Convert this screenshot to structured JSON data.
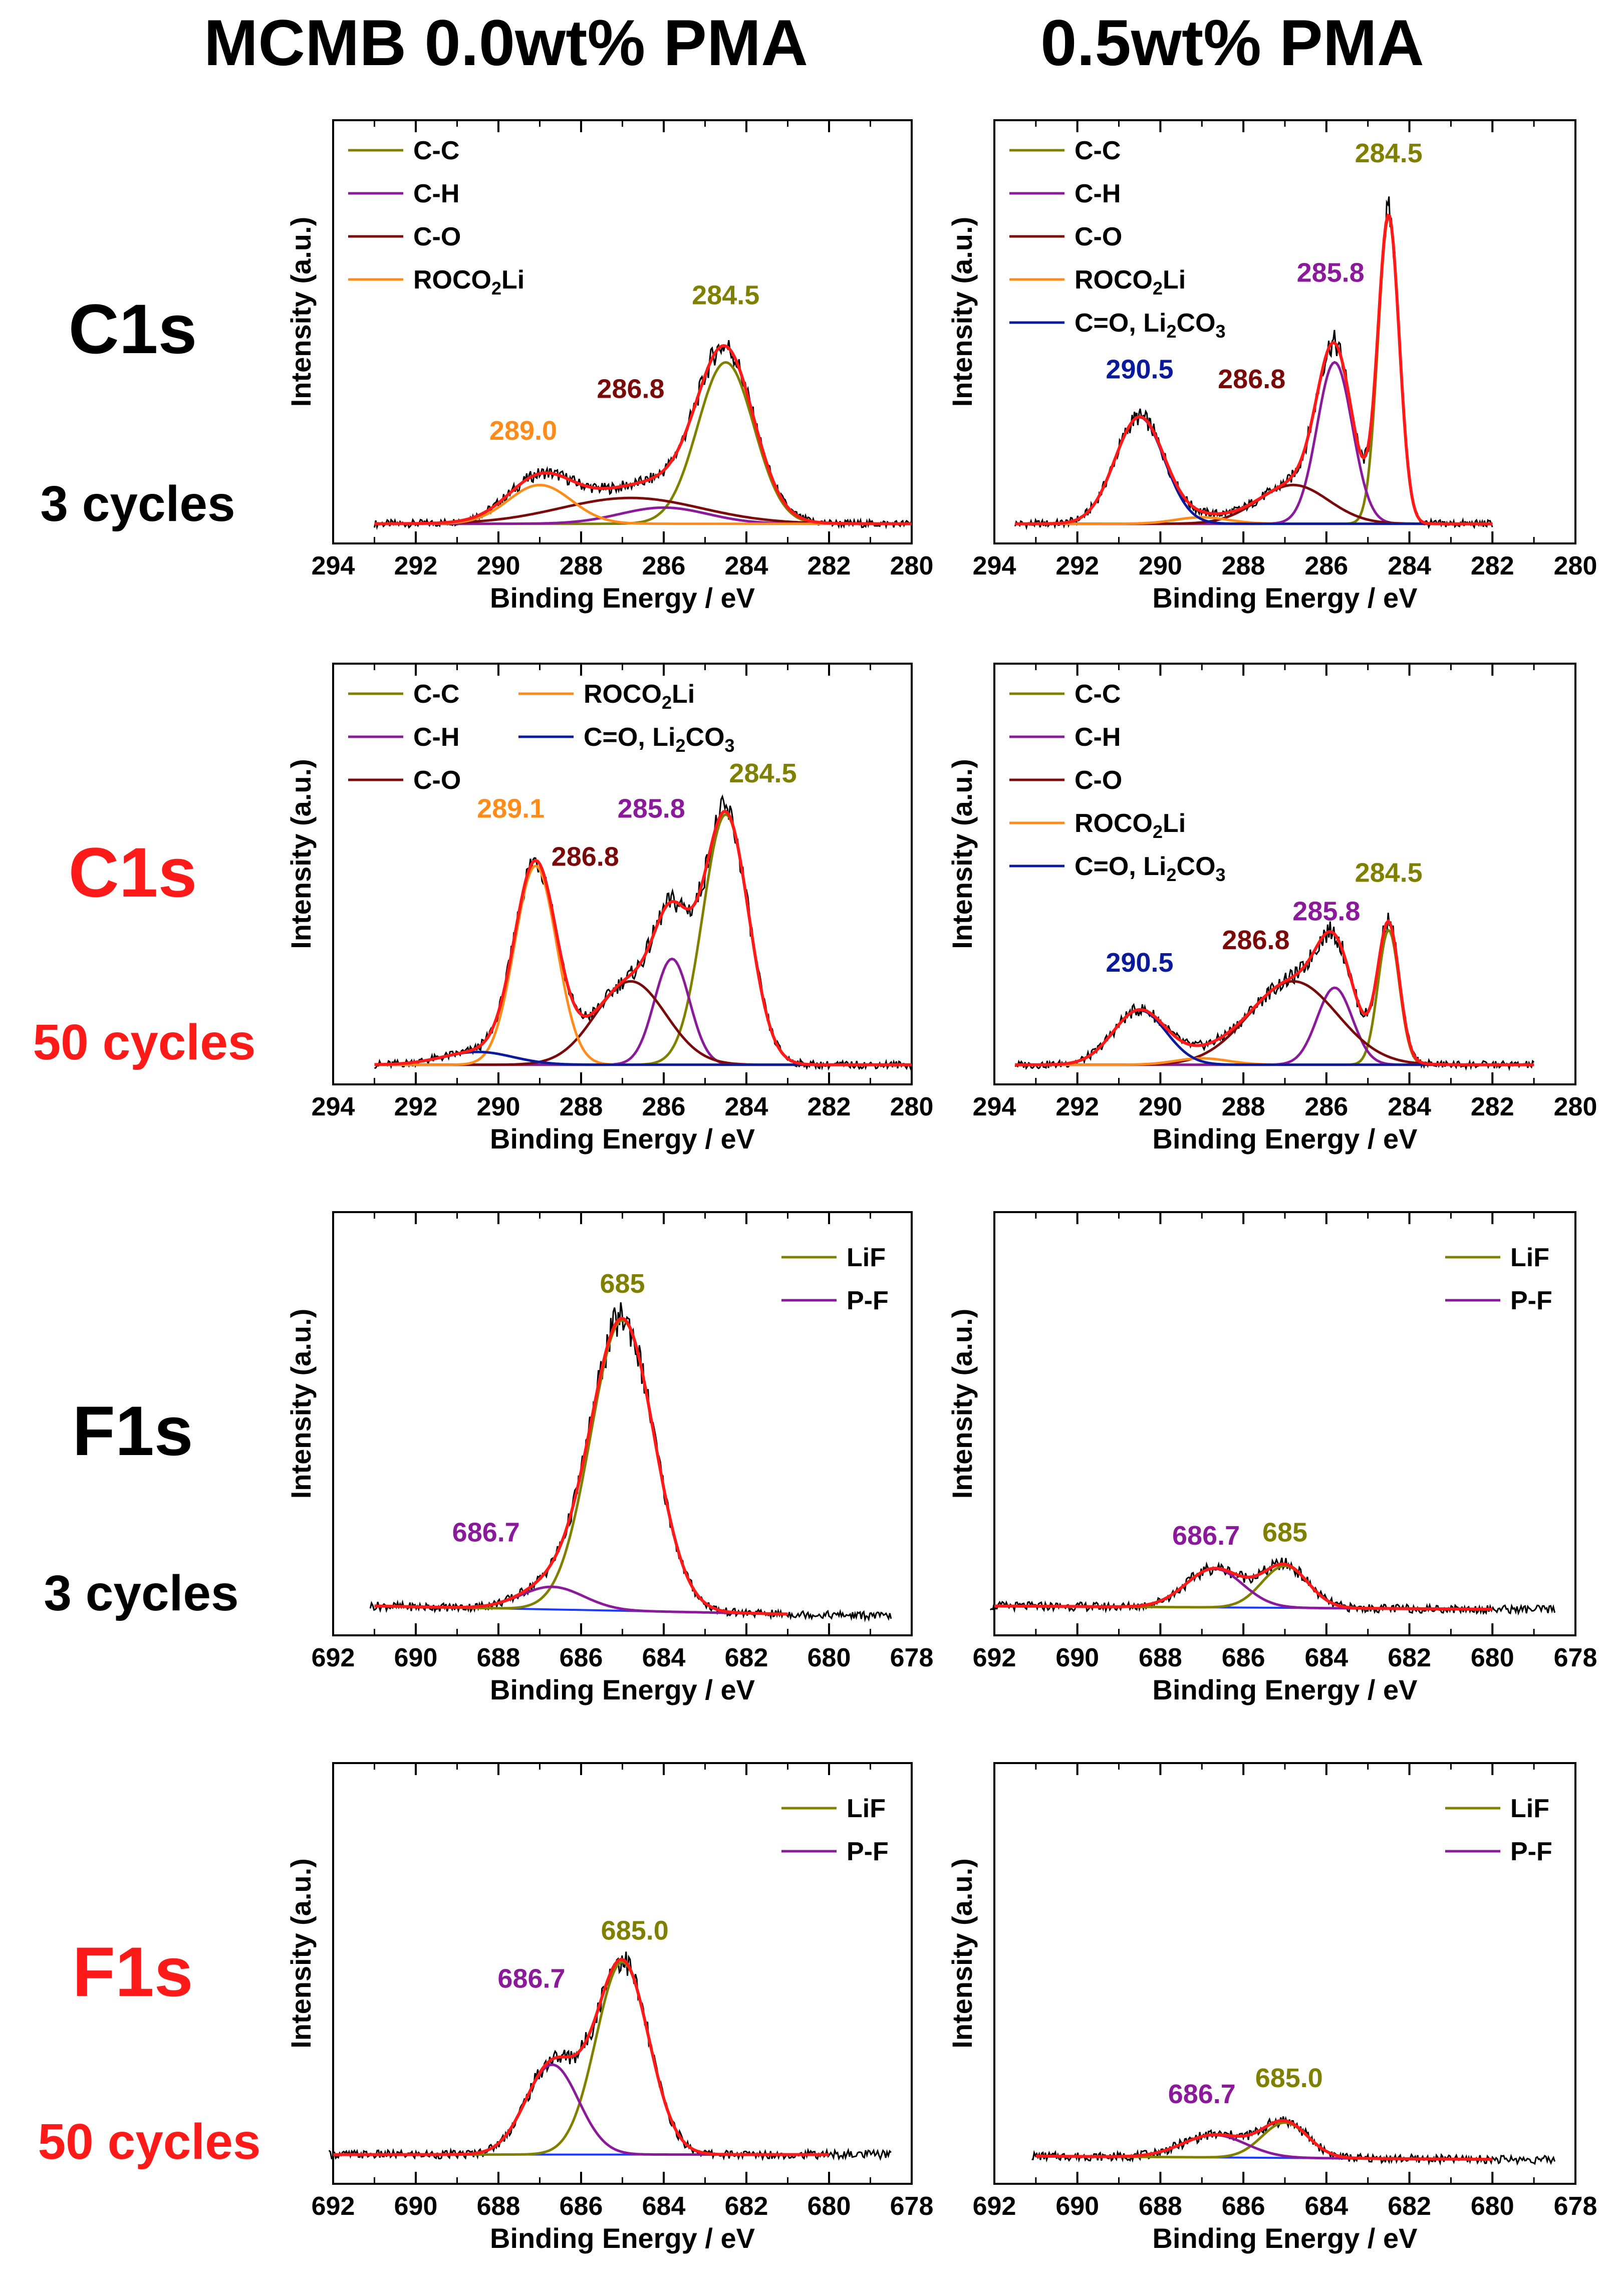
{
  "titles": {
    "left": "MCMB 0.0wt% PMA",
    "right": "0.5wt% PMA"
  },
  "row_labels": [
    {
      "main": "C1s",
      "sub": "3 cycles",
      "color": "#000000"
    },
    {
      "main": "C1s",
      "sub": "50 cycles",
      "color": "#ff1a1a"
    },
    {
      "main": "F1s",
      "sub": "3 cycles",
      "color": "#000000"
    },
    {
      "main": "F1s",
      "sub": "50 cycles",
      "color": "#ff1a1a"
    }
  ],
  "colors": {
    "C-C": "#808000",
    "C-H": "#8b1a9b",
    "C-O": "#7a0a0a",
    "ROCO2Li": "#ff8c1a",
    "C=O, Li2CO3": "#0a1a9a",
    "LiF": "#808000",
    "P-F": "#8b1a9b",
    "baseline": "#1a3aff",
    "envelope": "#ff1a1a",
    "raw": "#000000"
  },
  "chart_data": [
    {
      "id": "c1s-3-0pma",
      "type": "line",
      "region": "C1s",
      "xlabel": "Binding Energy / eV",
      "ylabel": "Intensity (a.u.)",
      "xlim": [
        294,
        280
      ],
      "xticks": [
        294,
        292,
        290,
        288,
        286,
        284,
        282,
        280
      ],
      "fit_range": [
        293,
        280
      ],
      "legend": [
        {
          "key": "C-C",
          "label": "C-C"
        },
        {
          "key": "C-H",
          "label": "C-H"
        },
        {
          "key": "C-O",
          "label": "C-O"
        },
        {
          "key": "ROCO2Li",
          "label": "ROCO",
          "sub": "2",
          "tail": "Li"
        }
      ],
      "peaks": [
        {
          "key": "C-C",
          "center": 284.5,
          "height": 0.5,
          "fwhm": 1.6
        },
        {
          "key": "C-H",
          "center": 286.0,
          "height": 0.05,
          "fwhm": 2.5
        },
        {
          "key": "C-O",
          "center": 286.8,
          "height": 0.08,
          "fwhm": 4.0
        },
        {
          "key": "ROCO2Li",
          "center": 289.0,
          "height": 0.12,
          "fwhm": 1.8
        }
      ],
      "baseline": [],
      "annotations": [
        {
          "text": "284.5",
          "x": 284.5,
          "y": 0.68,
          "key": "C-C"
        },
        {
          "text": "286.8",
          "x": 286.8,
          "y": 0.39,
          "key": "C-O"
        },
        {
          "text": "289.0",
          "x": 289.4,
          "y": 0.26,
          "key": "ROCO2Li"
        }
      ]
    },
    {
      "id": "c1s-3-05pma",
      "type": "line",
      "region": "C1s",
      "xlabel": "Binding Energy / eV",
      "ylabel": "Intensity (a.u.)",
      "xlim": [
        294,
        280
      ],
      "xticks": [
        294,
        292,
        290,
        288,
        286,
        284,
        282,
        280
      ],
      "fit_range": [
        293.5,
        282
      ],
      "legend": [
        {
          "key": "C-C",
          "label": "C-C"
        },
        {
          "key": "C-H",
          "label": "C-H"
        },
        {
          "key": "C-O",
          "label": "C-O"
        },
        {
          "key": "ROCO2Li",
          "label": "ROCO",
          "sub": "2",
          "tail": "Li"
        },
        {
          "key": "C=O, Li2CO3",
          "label": "C=O, Li",
          "sub": "2",
          "tail": "CO",
          "sub2": "3"
        }
      ],
      "peaks": [
        {
          "key": "C-C",
          "center": 284.5,
          "height": 0.95,
          "fwhm": 0.6
        },
        {
          "key": "C-H",
          "center": 285.8,
          "height": 0.5,
          "fwhm": 1.0
        },
        {
          "key": "C-O",
          "center": 286.8,
          "height": 0.12,
          "fwhm": 2.0
        },
        {
          "key": "ROCO2Li",
          "center": 289.0,
          "height": 0.02,
          "fwhm": 1.5
        },
        {
          "key": "C=O, Li2CO3",
          "center": 290.5,
          "height": 0.33,
          "fwhm": 1.4
        }
      ],
      "baseline": [],
      "annotations": [
        {
          "text": "284.5",
          "x": 284.5,
          "y": 1.12,
          "key": "C-C"
        },
        {
          "text": "285.8",
          "x": 285.9,
          "y": 0.75,
          "key": "C-H"
        },
        {
          "text": "286.8",
          "x": 287.8,
          "y": 0.42,
          "key": "C-O"
        },
        {
          "text": "290.5",
          "x": 290.5,
          "y": 0.45,
          "key": "C=O, Li2CO3"
        }
      ]
    },
    {
      "id": "c1s-50-0pma",
      "type": "line",
      "region": "C1s",
      "xlabel": "Binding Energy / eV",
      "ylabel": "Intensity (a.u.)",
      "xlim": [
        294,
        280
      ],
      "xticks": [
        294,
        292,
        290,
        288,
        286,
        284,
        282,
        280
      ],
      "fit_range": [
        293,
        280
      ],
      "legend": [
        {
          "key": "C-C",
          "label": "C-C"
        },
        {
          "key": "C-H",
          "label": "C-H"
        },
        {
          "key": "C-O",
          "label": "C-O"
        },
        {
          "key": "ROCO2Li",
          "label": "ROCO",
          "sub": "2",
          "tail": "Li"
        },
        {
          "key": "C=O, Li2CO3",
          "label": "C=O, Li",
          "sub": "2",
          "tail": "CO",
          "sub2": "3"
        }
      ],
      "peaks": [
        {
          "key": "C-C",
          "center": 284.5,
          "height": 0.78,
          "fwhm": 1.3
        },
        {
          "key": "C-H",
          "center": 285.8,
          "height": 0.33,
          "fwhm": 1.0
        },
        {
          "key": "C-O",
          "center": 286.8,
          "height": 0.26,
          "fwhm": 2.0
        },
        {
          "key": "ROCO2Li",
          "center": 289.1,
          "height": 0.62,
          "fwhm": 1.2
        },
        {
          "key": "C=O, Li2CO3",
          "center": 290.5,
          "height": 0.04,
          "fwhm": 2.0
        }
      ],
      "baseline": [],
      "annotations": [
        {
          "text": "284.5",
          "x": 283.6,
          "y": 0.88,
          "key": "C-C"
        },
        {
          "text": "285.8",
          "x": 286.3,
          "y": 0.77,
          "key": "C-H"
        },
        {
          "text": "286.8",
          "x": 287.9,
          "y": 0.62,
          "key": "C-O"
        },
        {
          "text": "289.1",
          "x": 289.7,
          "y": 0.77,
          "key": "ROCO2Li"
        }
      ]
    },
    {
      "id": "c1s-50-05pma",
      "type": "line",
      "region": "C1s",
      "xlabel": "Binding Energy / eV",
      "ylabel": "Intensity (a.u.)",
      "xlim": [
        294,
        280
      ],
      "xticks": [
        294,
        292,
        290,
        288,
        286,
        284,
        282,
        280
      ],
      "fit_range": [
        293.5,
        281
      ],
      "legend": [
        {
          "key": "C-C",
          "label": "C-C"
        },
        {
          "key": "C-H",
          "label": "C-H"
        },
        {
          "key": "C-O",
          "label": "C-O"
        },
        {
          "key": "ROCO2Li",
          "label": "ROCO",
          "sub": "2",
          "tail": "Li"
        },
        {
          "key": "C=O, Li2CO3",
          "label": "C=O, Li",
          "sub": "2",
          "tail": "CO",
          "sub2": "3"
        }
      ],
      "peaks": [
        {
          "key": "C-C",
          "center": 284.5,
          "height": 0.42,
          "fwhm": 0.6
        },
        {
          "key": "C-H",
          "center": 285.8,
          "height": 0.24,
          "fwhm": 1.0
        },
        {
          "key": "C-O",
          "center": 286.8,
          "height": 0.26,
          "fwhm": 2.5
        },
        {
          "key": "ROCO2Li",
          "center": 289.0,
          "height": 0.02,
          "fwhm": 1.5
        },
        {
          "key": "C=O, Li2CO3",
          "center": 290.5,
          "height": 0.17,
          "fwhm": 1.5
        }
      ],
      "baseline": [],
      "annotations": [
        {
          "text": "284.5",
          "x": 284.5,
          "y": 0.57,
          "key": "C-C"
        },
        {
          "text": "285.8",
          "x": 286.0,
          "y": 0.45,
          "key": "C-H"
        },
        {
          "text": "286.8",
          "x": 287.7,
          "y": 0.36,
          "key": "C-O"
        },
        {
          "text": "290.5",
          "x": 290.5,
          "y": 0.29,
          "key": "C=O, Li2CO3"
        }
      ]
    },
    {
      "id": "f1s-3-0pma",
      "type": "line",
      "region": "F1s",
      "xlabel": "Binding Energy / eV",
      "ylabel": "Intensity (a.u.)",
      "xlim": [
        692,
        678
      ],
      "xticks": [
        692,
        690,
        688,
        686,
        684,
        682,
        680,
        678
      ],
      "fit_range": [
        691,
        681
      ],
      "legend": [
        {
          "key": "LiF",
          "label": "LiF"
        },
        {
          "key": "P-F",
          "label": "P-F"
        }
      ],
      "peaks": [
        {
          "key": "LiF",
          "center": 685.0,
          "height": 0.9,
          "fwhm": 1.8
        },
        {
          "key": "P-F",
          "center": 686.7,
          "height": 0.07,
          "fwhm": 1.8
        }
      ],
      "baseline": [
        0.03,
        0.005
      ],
      "annotations": [
        {
          "text": "685",
          "x": 685.0,
          "y": 1.0,
          "key": "LiF"
        },
        {
          "text": "686.7",
          "x": 688.3,
          "y": 0.23,
          "key": "P-F"
        }
      ]
    },
    {
      "id": "f1s-3-05pma",
      "type": "line",
      "region": "F1s",
      "xlabel": "Binding Energy / eV",
      "ylabel": "Intensity (a.u.)",
      "xlim": [
        692,
        678
      ],
      "xticks": [
        692,
        690,
        688,
        686,
        684,
        682,
        680,
        678
      ],
      "fit_range": [
        692,
        680
      ],
      "legend": [
        {
          "key": "LiF",
          "label": "LiF"
        },
        {
          "key": "P-F",
          "label": "P-F"
        }
      ],
      "peaks": [
        {
          "key": "LiF",
          "center": 685.0,
          "height": 0.13,
          "fwhm": 1.3
        },
        {
          "key": "P-F",
          "center": 686.7,
          "height": 0.12,
          "fwhm": 1.6
        }
      ],
      "baseline": [
        0.03,
        0.02
      ],
      "annotations": [
        {
          "text": "685",
          "x": 685.0,
          "y": 0.23,
          "key": "LiF"
        },
        {
          "text": "686.7",
          "x": 686.9,
          "y": 0.22,
          "key": "P-F"
        }
      ]
    },
    {
      "id": "f1s-50-0pma",
      "type": "line",
      "region": "F1s",
      "xlabel": "Binding Energy / eV",
      "ylabel": "Intensity (a.u.)",
      "xlim": [
        692,
        678
      ],
      "xticks": [
        692,
        690,
        688,
        686,
        684,
        682,
        680,
        678
      ],
      "fit_range": [
        692,
        680
      ],
      "legend": [
        {
          "key": "LiF",
          "label": "LiF"
        },
        {
          "key": "P-F",
          "label": "P-F"
        }
      ],
      "peaks": [
        {
          "key": "LiF",
          "center": 685.0,
          "height": 0.6,
          "fwhm": 1.5
        },
        {
          "key": "P-F",
          "center": 686.7,
          "height": 0.28,
          "fwhm": 1.5
        }
      ],
      "baseline": [
        0.03,
        0.03
      ],
      "annotations": [
        {
          "text": "685.0",
          "x": 684.7,
          "y": 0.7,
          "key": "LiF"
        },
        {
          "text": "686.7",
          "x": 687.2,
          "y": 0.55,
          "key": "P-F"
        }
      ]
    },
    {
      "id": "f1s-50-05pma",
      "type": "line",
      "region": "F1s",
      "xlabel": "Binding Energy / eV",
      "ylabel": "Intensity (a.u.)",
      "xlim": [
        692,
        678
      ],
      "xticks": [
        692,
        690,
        688,
        686,
        684,
        682,
        680,
        678
      ],
      "fit_range": [
        691,
        680
      ],
      "legend": [
        {
          "key": "LiF",
          "label": "LiF"
        },
        {
          "key": "P-F",
          "label": "P-F"
        }
      ],
      "peaks": [
        {
          "key": "LiF",
          "center": 685.0,
          "height": 0.11,
          "fwhm": 1.3
        },
        {
          "key": "P-F",
          "center": 686.7,
          "height": 0.07,
          "fwhm": 1.8
        }
      ],
      "baseline": [
        0.025,
        0.015
      ],
      "annotations": [
        {
          "text": "685.0",
          "x": 684.9,
          "y": 0.24,
          "key": "LiF"
        },
        {
          "text": "686.7",
          "x": 687.0,
          "y": 0.19,
          "key": "P-F"
        }
      ]
    }
  ]
}
